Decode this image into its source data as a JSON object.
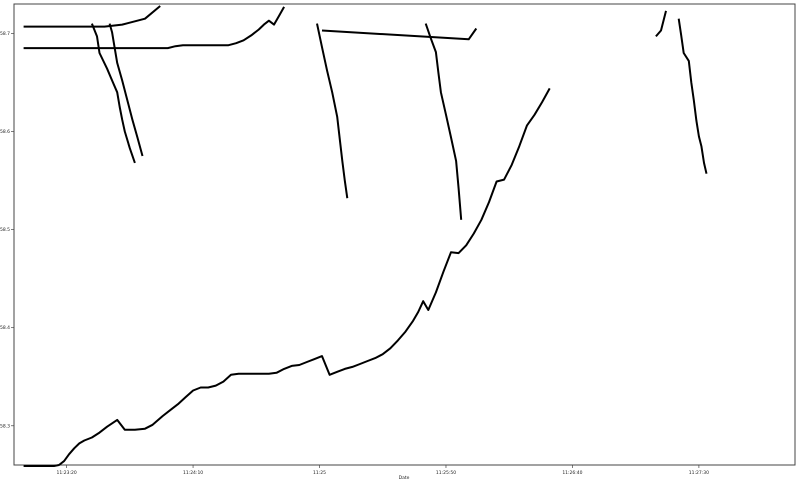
{
  "chart_data": {
    "type": "line",
    "title": "",
    "xlabel": "Date",
    "ylabel": "",
    "x_ticks": [
      "11:23:20",
      "11:24:10",
      "11:25",
      "11:25:50",
      "11:26:40",
      "11:27:30"
    ],
    "x_tick_values": [
      20,
      70,
      120,
      170,
      220,
      270
    ],
    "y_ticks": [
      "158.3",
      "158.4",
      "158.5",
      "158.6",
      "158.7"
    ],
    "y_tick_values": [
      158.3,
      158.4,
      158.5,
      158.6,
      158.7
    ],
    "xlim": [
      -0.8,
      308
    ],
    "ylim": [
      158.26,
      158.73
    ],
    "grid": false,
    "legend": "none",
    "series": [
      {
        "values": [
          [
            3,
            158.259
          ],
          [
            15,
            158.259
          ],
          [
            17,
            158.26
          ],
          [
            19,
            158.264
          ],
          [
            21,
            158.271
          ],
          [
            23,
            158.277
          ],
          [
            25,
            158.282
          ],
          [
            27,
            158.285
          ],
          [
            30,
            158.288
          ],
          [
            33,
            158.293
          ],
          [
            36,
            158.299
          ],
          [
            40,
            158.306
          ],
          [
            43,
            158.296
          ],
          [
            47,
            158.296
          ],
          [
            51,
            158.297
          ],
          [
            54,
            158.301
          ],
          [
            58,
            158.31
          ],
          [
            61,
            158.316
          ],
          [
            64,
            158.322
          ],
          [
            67,
            158.329
          ],
          [
            70,
            158.336
          ],
          [
            73,
            158.339
          ],
          [
            76,
            158.339
          ],
          [
            79,
            158.341
          ],
          [
            82,
            158.345
          ],
          [
            85,
            158.352
          ],
          [
            88,
            158.353
          ],
          [
            92,
            158.353
          ],
          [
            96,
            158.353
          ],
          [
            100,
            158.353
          ],
          [
            103,
            158.354
          ],
          [
            106,
            158.358
          ],
          [
            109,
            158.361
          ],
          [
            112,
            158.362
          ],
          [
            115,
            158.365
          ],
          [
            118,
            158.368
          ],
          [
            121,
            158.371
          ],
          [
            124,
            158.352
          ],
          [
            127,
            158.355
          ],
          [
            130,
            158.358
          ],
          [
            133,
            158.36
          ],
          [
            136,
            158.363
          ],
          [
            139,
            158.366
          ],
          [
            142,
            158.369
          ],
          [
            145,
            158.373
          ],
          [
            148,
            158.379
          ],
          [
            151,
            158.387
          ],
          [
            154,
            158.396
          ],
          [
            157,
            158.407
          ],
          [
            159,
            158.416
          ],
          [
            161,
            158.427
          ],
          [
            163,
            158.418
          ],
          [
            166,
            158.436
          ],
          [
            169,
            158.457
          ],
          [
            172,
            158.477
          ],
          [
            175,
            158.476
          ],
          [
            178,
            158.484
          ],
          [
            181,
            158.496
          ],
          [
            184,
            158.51
          ],
          [
            187,
            158.528
          ],
          [
            190,
            158.549
          ],
          [
            193,
            158.551
          ],
          [
            196,
            158.566
          ],
          [
            199,
            158.585
          ],
          [
            202,
            158.606
          ],
          [
            205,
            158.617
          ],
          [
            208,
            158.63
          ],
          [
            211,
            158.644
          ]
        ]
      },
      {
        "values": [
          [
            3,
            158.685
          ],
          [
            60,
            158.685
          ],
          [
            63,
            158.687
          ],
          [
            66,
            158.688
          ],
          [
            71,
            158.688
          ],
          [
            79,
            158.688
          ],
          [
            84,
            158.688
          ],
          [
            87,
            158.69
          ],
          [
            90,
            158.693
          ],
          [
            93,
            158.698
          ],
          [
            96,
            158.704
          ],
          [
            98,
            158.709
          ],
          [
            100,
            158.713
          ],
          [
            102,
            158.709
          ],
          [
            104,
            158.718
          ],
          [
            106,
            158.727
          ]
        ]
      },
      {
        "values": [
          [
            3,
            158.707
          ],
          [
            20,
            158.707
          ],
          [
            35,
            158.707
          ],
          [
            42,
            158.709
          ],
          [
            51,
            158.715
          ],
          [
            57,
            158.728
          ]
        ]
      },
      {
        "values": [
          [
            30,
            158.71
          ],
          [
            32,
            158.697
          ],
          [
            33,
            158.68
          ],
          [
            36,
            158.664
          ],
          [
            38,
            158.652
          ],
          [
            40,
            158.64
          ],
          [
            41,
            158.625
          ],
          [
            42,
            158.612
          ],
          [
            43,
            158.6
          ],
          [
            45,
            158.583
          ],
          [
            47,
            158.568
          ]
        ]
      },
      {
        "values": [
          [
            37,
            158.71
          ],
          [
            38,
            158.701
          ],
          [
            39,
            158.685
          ],
          [
            40,
            158.67
          ],
          [
            42,
            158.652
          ],
          [
            44,
            158.632
          ],
          [
            46,
            158.612
          ],
          [
            48,
            158.594
          ],
          [
            50,
            158.575
          ]
        ]
      },
      {
        "values": [
          [
            119,
            158.71
          ],
          [
            121,
            158.686
          ],
          [
            123,
            158.662
          ],
          [
            125,
            158.64
          ],
          [
            127,
            158.615
          ],
          [
            128,
            158.592
          ],
          [
            129,
            158.57
          ],
          [
            130,
            158.55
          ],
          [
            131,
            158.532
          ]
        ]
      },
      {
        "values": [
          [
            121,
            158.703
          ],
          [
            179,
            158.694
          ],
          [
            182,
            158.705
          ]
        ]
      },
      {
        "values": [
          [
            162,
            158.71
          ],
          [
            164,
            158.695
          ],
          [
            166,
            158.681
          ],
          [
            167,
            158.66
          ],
          [
            168,
            158.64
          ],
          [
            170,
            158.617
          ],
          [
            172,
            158.594
          ],
          [
            174,
            158.57
          ],
          [
            175,
            158.542
          ],
          [
            176,
            158.51
          ]
        ]
      },
      {
        "values": [
          [
            253,
            158.697
          ],
          [
            255,
            158.703
          ],
          [
            257,
            158.723
          ]
        ]
      },
      {
        "values": [
          [
            262,
            158.715
          ],
          [
            263,
            158.698
          ],
          [
            264,
            158.68
          ],
          [
            266,
            158.672
          ],
          [
            267,
            158.65
          ],
          [
            268,
            158.632
          ],
          [
            269,
            158.611
          ],
          [
            270,
            158.595
          ],
          [
            271,
            158.585
          ],
          [
            272,
            158.568
          ],
          [
            273,
            158.557
          ]
        ]
      }
    ]
  }
}
